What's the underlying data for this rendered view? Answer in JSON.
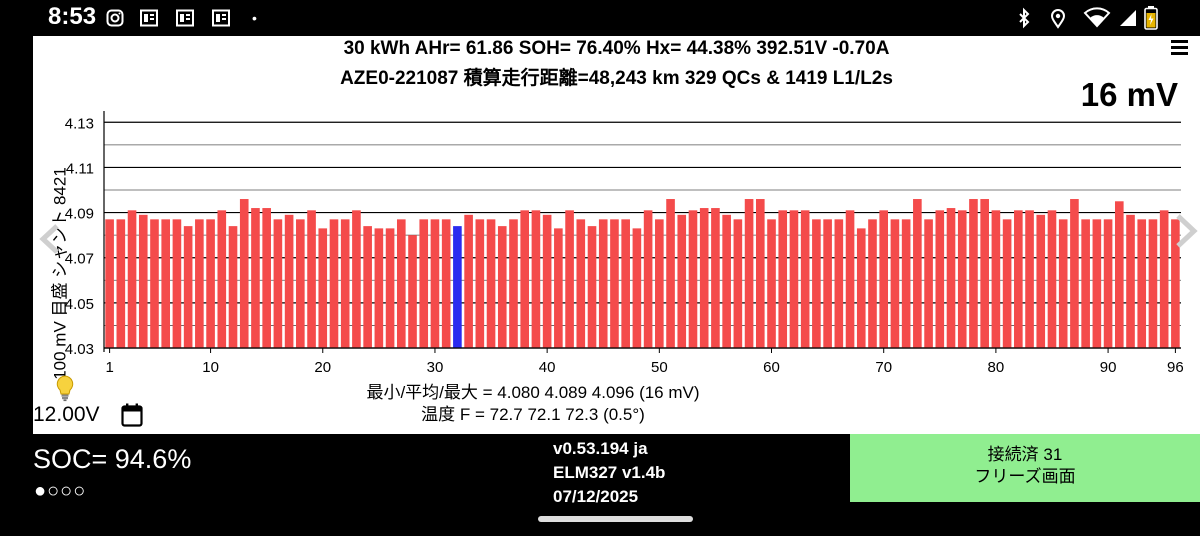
{
  "status_bar": {
    "time": "8:53",
    "left_icons": [
      "instagram-icon",
      "news-icon",
      "news-icon",
      "news-icon"
    ],
    "dot": "•",
    "right_icons": [
      "bluetooth-icon",
      "location-icon",
      "wifi-icon",
      "signal-icon",
      "battery-icon"
    ]
  },
  "header": {
    "line1": "30 kWh  AHr= 61.86  SOH= 76.40%   Hx= 44.38%   392.51V -0.70A",
    "line2": "AZE0-221087 積算走行距離=48,243 km  329 QCs & 1419 L1/L2s",
    "mv_label": "16 mV"
  },
  "chart_data": {
    "type": "bar",
    "ylabel": "100 mV 目盛 シャント 8421",
    "ylim": [
      4.03,
      4.135
    ],
    "y_ticks": [
      "4.03",
      "4.05",
      "4.07",
      "4.09",
      "4.11",
      "4.13"
    ],
    "x_ticks": [
      "1",
      "10",
      "20",
      "30",
      "40",
      "50",
      "60",
      "70",
      "80",
      "90",
      "96"
    ],
    "highlight_index": 32,
    "colors": {
      "bar": "#F44B4B",
      "highlight": "#2B2BF0"
    },
    "values": [
      4.087,
      4.087,
      4.091,
      4.089,
      4.087,
      4.087,
      4.087,
      4.084,
      4.087,
      4.087,
      4.091,
      4.084,
      4.096,
      4.092,
      4.092,
      4.087,
      4.089,
      4.087,
      4.091,
      4.083,
      4.087,
      4.087,
      4.091,
      4.084,
      4.083,
      4.083,
      4.087,
      4.08,
      4.087,
      4.087,
      4.087,
      4.084,
      4.089,
      4.087,
      4.087,
      4.084,
      4.087,
      4.091,
      4.091,
      4.089,
      4.083,
      4.091,
      4.087,
      4.084,
      4.087,
      4.087,
      4.087,
      4.083,
      4.091,
      4.087,
      4.096,
      4.089,
      4.091,
      4.092,
      4.092,
      4.089,
      4.087,
      4.096,
      4.096,
      4.087,
      4.091,
      4.091,
      4.091,
      4.087,
      4.087,
      4.087,
      4.091,
      4.083,
      4.087,
      4.091,
      4.087,
      4.087,
      4.096,
      4.087,
      4.091,
      4.092,
      4.091,
      4.096,
      4.096,
      4.091,
      4.087,
      4.091,
      4.091,
      4.089,
      4.091,
      4.087,
      4.096,
      4.087,
      4.087,
      4.087,
      4.095,
      4.089,
      4.087,
      4.087,
      4.091,
      4.087
    ]
  },
  "stats": {
    "line1": "最小/平均/最大 = 4.080 4.089 4.096  (16 mV)",
    "line2": "温度 F = 72.7  72.1  72.3  (0.5°)"
  },
  "voltage": "12.00V",
  "bottom": {
    "soc": "SOC= 94.6%",
    "dots": "●○○○",
    "version": "v0.53.194 ja",
    "elm": "ELM327 v1.4b",
    "date": "07/12/2025",
    "connect_line1": "接続済 31",
    "connect_line2": "フリーズ画面"
  }
}
